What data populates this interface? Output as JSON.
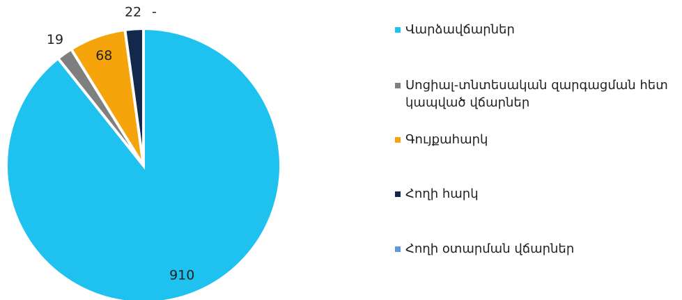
{
  "chart_data": {
    "type": "pie",
    "categories": [
      "Վարձավճարներ",
      "Սոցիալ-տնտեսական զարգացման հետ կապված վճարներ",
      "Գույքահարկ",
      "Հողի հարկ",
      "Հողի օտարման վճարներ"
    ],
    "values": [
      910,
      19,
      68,
      22,
      0
    ],
    "value_labels": [
      "910",
      "19",
      "68",
      "22",
      "-"
    ],
    "colors": [
      "#1fc1ef",
      "#7f7f7f",
      "#f5a50b",
      "#13294b",
      "#5b9bd5"
    ],
    "legend": "right"
  }
}
